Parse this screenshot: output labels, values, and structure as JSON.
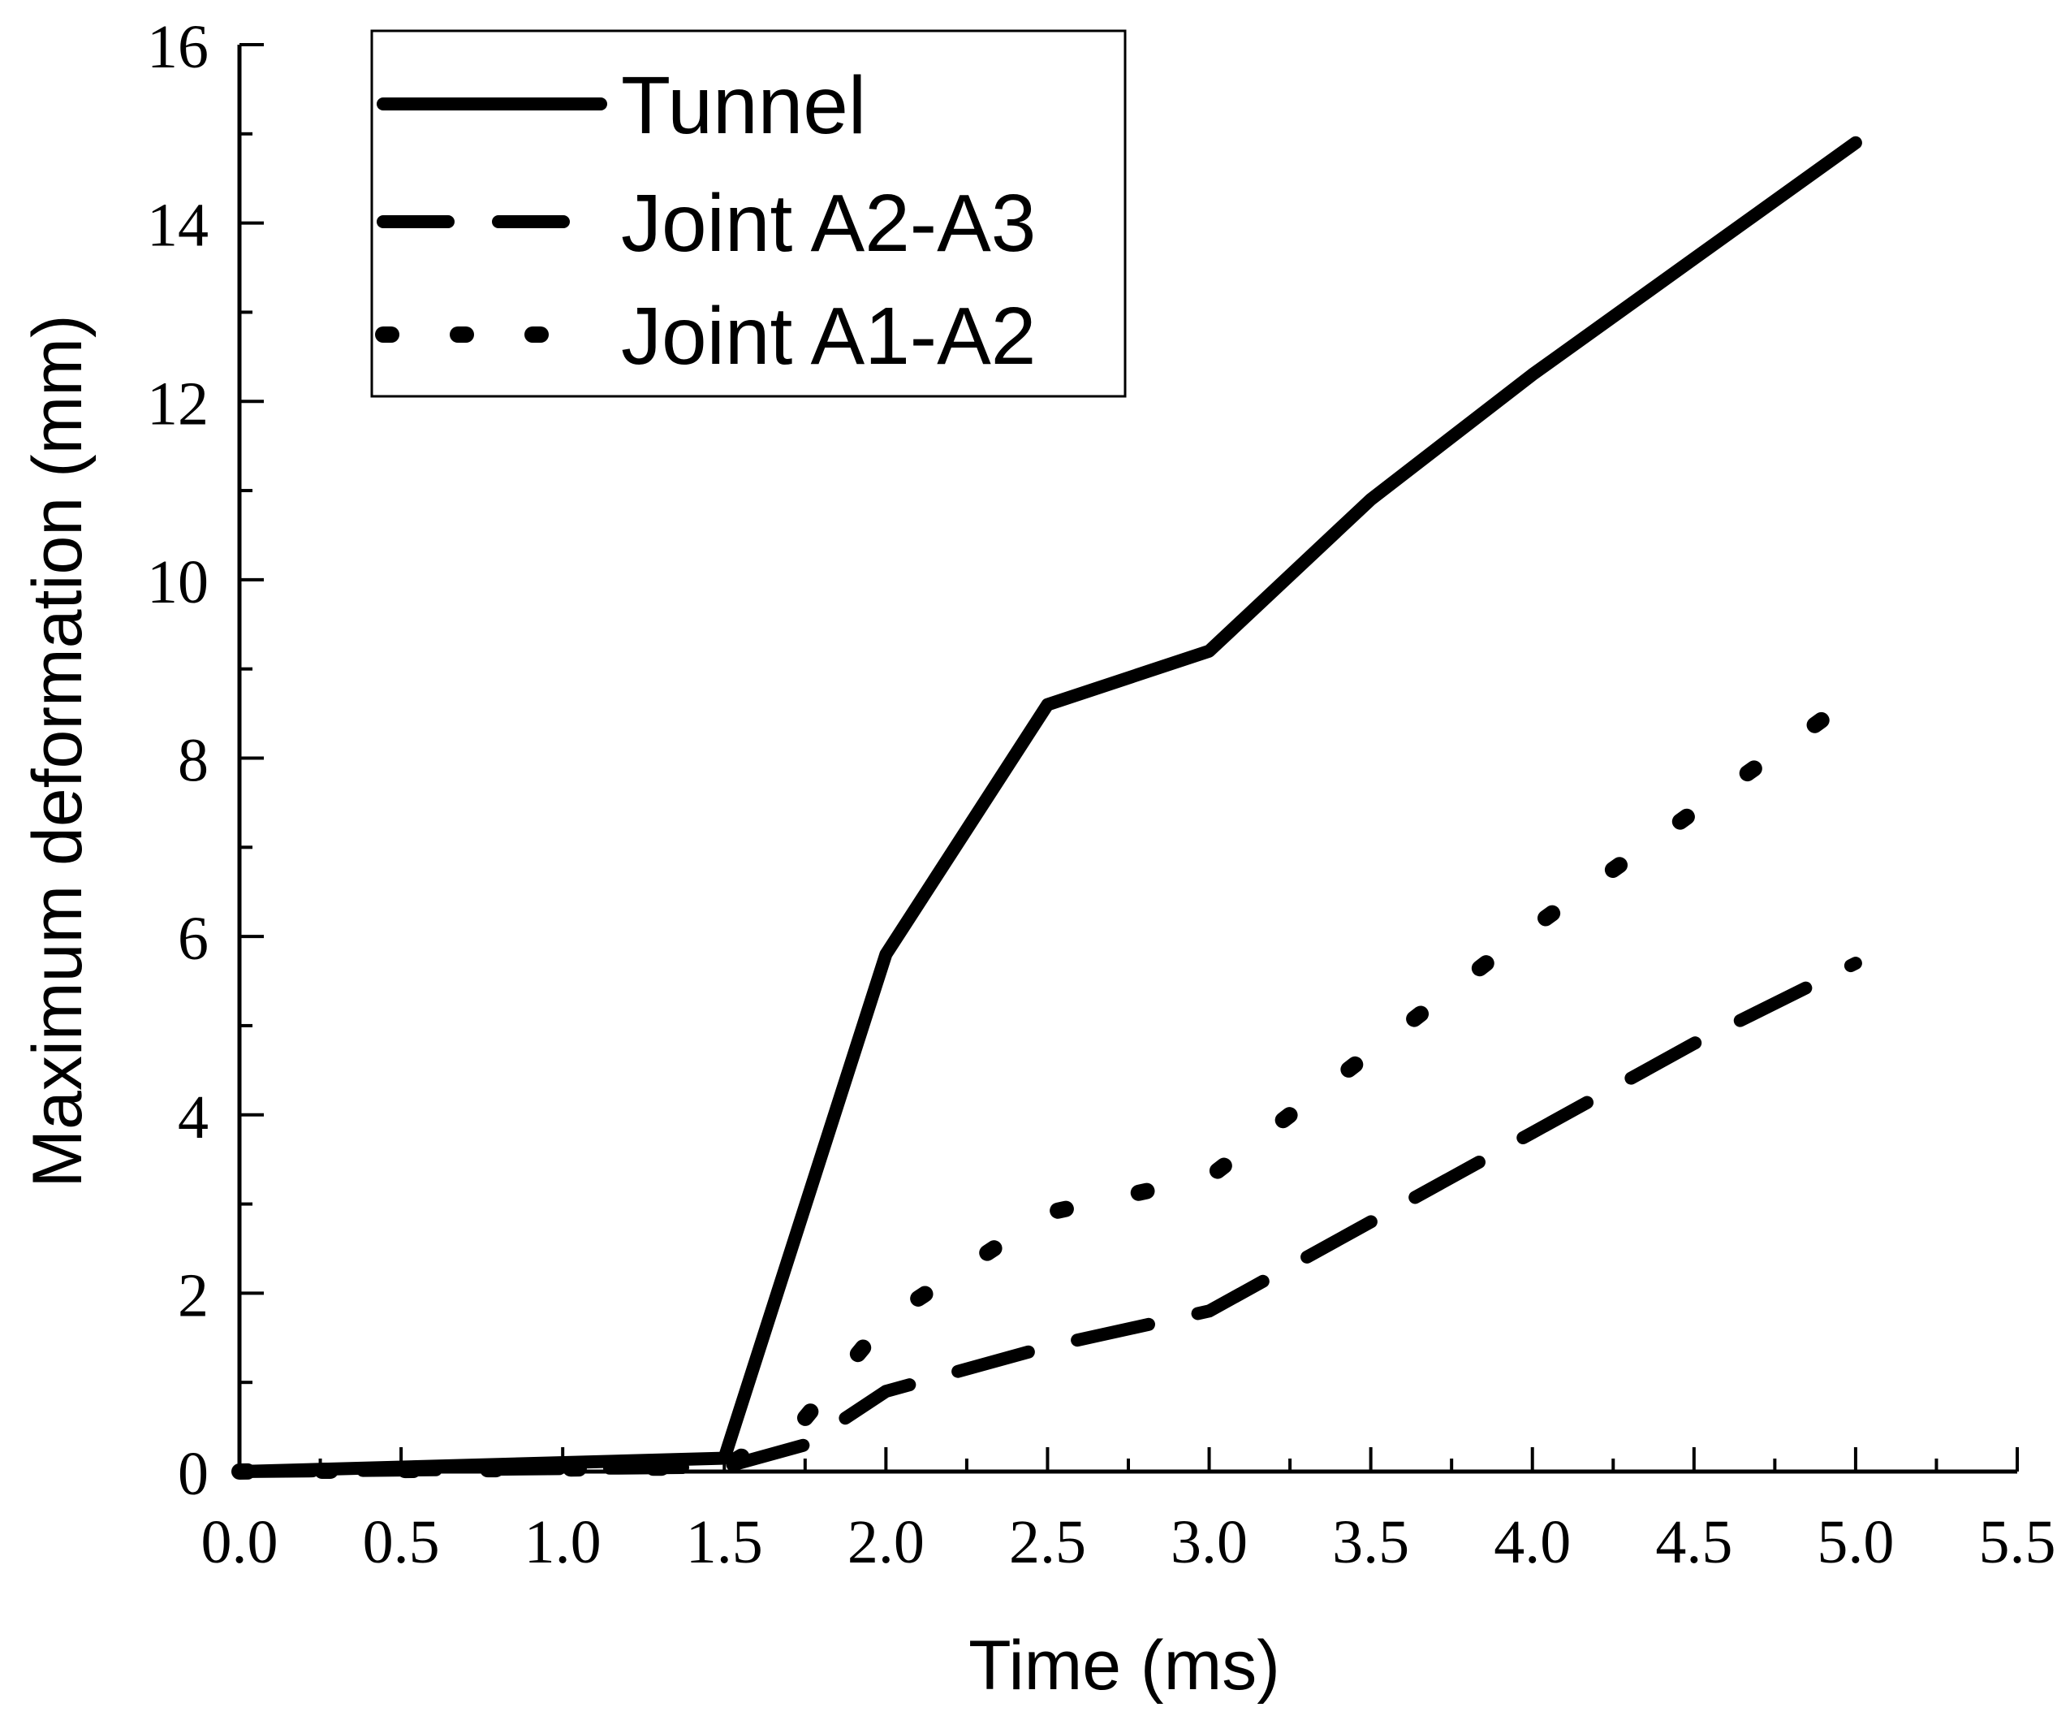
{
  "chart_data": {
    "type": "line",
    "xlabel": "Time (ms)",
    "ylabel": "Maximum deformation (mm)",
    "xlim": [
      0,
      5.5
    ],
    "ylim": [
      0,
      16
    ],
    "x_ticks": [
      "0.0",
      "0.5",
      "1.0",
      "1.5",
      "2.0",
      "2.5",
      "3.0",
      "3.5",
      "4.0",
      "4.5",
      "5.0",
      "5.5"
    ],
    "y_ticks": [
      "0",
      "2",
      "4",
      "6",
      "8",
      "10",
      "12",
      "14",
      "16"
    ],
    "grid": false,
    "legend_position": "top-left",
    "series": [
      {
        "name": "Tunnel",
        "style": "solid",
        "x": [
          0.0,
          1.5,
          2.0,
          2.5,
          3.0,
          3.5,
          4.0,
          4.5,
          5.0
        ],
        "y": [
          0.0,
          0.15,
          5.8,
          8.6,
          9.2,
          10.9,
          12.3,
          13.6,
          14.9
        ]
      },
      {
        "name": "Joint A2-A3",
        "style": "dashed",
        "x": [
          0.0,
          1.5,
          1.75,
          2.0,
          2.5,
          3.0,
          3.5,
          4.0,
          4.5,
          5.0
        ],
        "y": [
          0.0,
          0.05,
          0.3,
          0.9,
          1.4,
          1.8,
          2.8,
          3.8,
          4.8,
          5.7
        ]
      },
      {
        "name": "Joint A1-A2",
        "style": "dotted",
        "x": [
          0.0,
          1.5,
          1.75,
          2.0,
          2.5,
          3.0,
          3.5,
          4.0,
          4.5,
          5.0
        ],
        "y": [
          0.0,
          0.05,
          0.6,
          1.7,
          2.9,
          3.3,
          4.7,
          6.1,
          7.4,
          8.7
        ]
      }
    ]
  }
}
